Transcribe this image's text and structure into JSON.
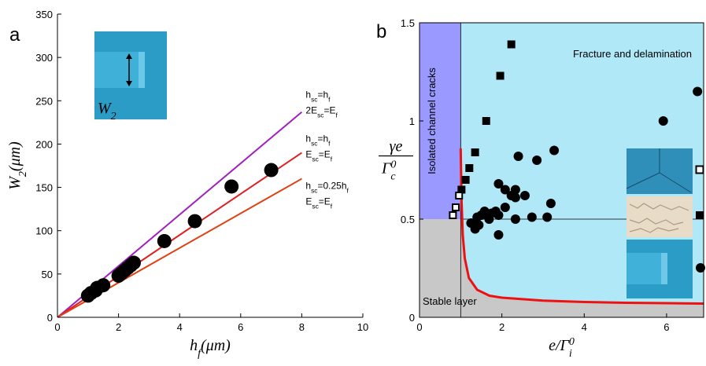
{
  "chart_data": [
    {
      "type": "scatter",
      "panel": "a",
      "xlabel": [
        {
          "t": "h"
        },
        {
          "sub": "f"
        },
        {
          "t": "(μm)"
        }
      ],
      "ylabel": [
        {
          "t": "W"
        },
        {
          "sub": "2"
        },
        {
          "t": "(μm)"
        }
      ],
      "inset_label": [
        {
          "t": "W"
        },
        {
          "sub": "2"
        }
      ],
      "xlim": [
        0,
        10
      ],
      "ylim": [
        0,
        350
      ],
      "xticks": [
        0,
        2,
        4,
        6,
        8,
        10
      ],
      "yticks": [
        0,
        50,
        100,
        150,
        200,
        250,
        300,
        350
      ],
      "color": "#000000",
      "x": [
        1.0,
        1.1,
        1.25,
        1.3,
        1.5,
        2.0,
        2.1,
        2.2,
        2.3,
        2.4,
        2.5,
        3.5,
        4.5,
        5.7,
        7.0
      ],
      "values": [
        25,
        28,
        31,
        34,
        37,
        48,
        51,
        54,
        57,
        60,
        63,
        88,
        111,
        151,
        170
      ],
      "lines": [
        {
          "color": "#a020c0",
          "x": [
            0,
            8
          ],
          "values": [
            0,
            237
          ],
          "label": [
            [
              {
                "t": "h"
              },
              {
                "sub": "sc"
              },
              {
                "t": "=h"
              },
              {
                "sub": "f"
              }
            ],
            [
              {
                "t": "2E"
              },
              {
                "sub": "sc"
              },
              {
                "t": "=E"
              },
              {
                "sub": "f"
              }
            ]
          ]
        },
        {
          "color": "#e02020",
          "x": [
            0,
            8
          ],
          "values": [
            0,
            190
          ],
          "label": [
            [
              {
                "t": "h"
              },
              {
                "sub": "sc"
              },
              {
                "t": "=h"
              },
              {
                "sub": "f"
              }
            ],
            [
              {
                "t": "E"
              },
              {
                "sub": "sc"
              },
              {
                "t": "=E"
              },
              {
                "sub": "f"
              }
            ]
          ]
        },
        {
          "color": "#e04010",
          "x": [
            0,
            8
          ],
          "values": [
            0,
            160
          ],
          "label": [
            [
              {
                "t": "h"
              },
              {
                "sub": "sc"
              },
              {
                "t": "=0.25h"
              },
              {
                "sub": "f"
              }
            ],
            [
              {
                "t": "E"
              },
              {
                "sub": "sc"
              },
              {
                "t": "=E"
              },
              {
                "sub": "f"
              }
            ]
          ]
        }
      ]
    },
    {
      "type": "scatter",
      "panel": "b",
      "xlabel": [
        {
          "t": "e/Γ"
        },
        {
          "sub": "i"
        },
        {
          "sup": "0"
        }
      ],
      "ylabel": {
        "numerator": "γe",
        "denominator": [
          {
            "t": "Γ"
          },
          {
            "sub": "c"
          },
          {
            "sup": "0"
          }
        ]
      },
      "xlim": [
        0,
        6.9
      ],
      "ylim": [
        0,
        1.5
      ],
      "xticks": [
        0,
        2,
        4,
        6
      ],
      "yticks": [
        0,
        0.5,
        1,
        1.5
      ],
      "vline": 1,
      "hline": 0.5,
      "regions": [
        {
          "label": "Isolated channel cracks",
          "color": "#9999ff"
        },
        {
          "label": "Fracture and delamination",
          "color": "#b0e8f8"
        },
        {
          "label": "Stable layer",
          "color": "#c8c8c8"
        }
      ],
      "curve": {
        "color": "#ee1111",
        "x": [
          1.0,
          1.02,
          1.05,
          1.1,
          1.2,
          1.4,
          1.7,
          2.0,
          3.0,
          4.0,
          5.0,
          6.0,
          6.9
        ],
        "values": [
          0.86,
          0.6,
          0.42,
          0.3,
          0.2,
          0.14,
          0.11,
          0.1,
          0.085,
          0.078,
          0.074,
          0.072,
          0.07
        ]
      },
      "series": [
        {
          "marker": "circle",
          "color": "#000000",
          "x": [
            1.25,
            1.35,
            1.44,
            1.4,
            1.5,
            1.58,
            1.69,
            1.75,
            1.85,
            1.92,
            1.92,
            1.92,
            2.08,
            2.08,
            2.23,
            2.33,
            2.33,
            2.33,
            2.4,
            2.56,
            2.73,
            2.85,
            3.1,
            3.19,
            3.27,
            5.92,
            6.75
          ],
          "values": [
            0.48,
            0.45,
            0.47,
            0.51,
            0.52,
            0.54,
            0.5,
            0.53,
            0.54,
            0.52,
            0.42,
            0.68,
            0.56,
            0.65,
            0.62,
            0.65,
            0.5,
            0.61,
            0.82,
            0.62,
            0.51,
            0.8,
            0.51,
            0.58,
            0.85,
            1.0,
            1.15
          ]
        },
        {
          "marker": "square",
          "color": "#000000",
          "x": [
            1.02,
            1.12,
            1.21,
            1.35,
            1.62,
            1.96,
            2.23
          ],
          "values": [
            0.65,
            0.7,
            0.76,
            0.84,
            1.0,
            1.23,
            1.39
          ]
        },
        {
          "marker": "open-square",
          "color": "#000000",
          "x": [
            0.81,
            0.88,
            0.96
          ],
          "values": [
            0.52,
            0.56,
            0.62
          ]
        }
      ]
    }
  ]
}
